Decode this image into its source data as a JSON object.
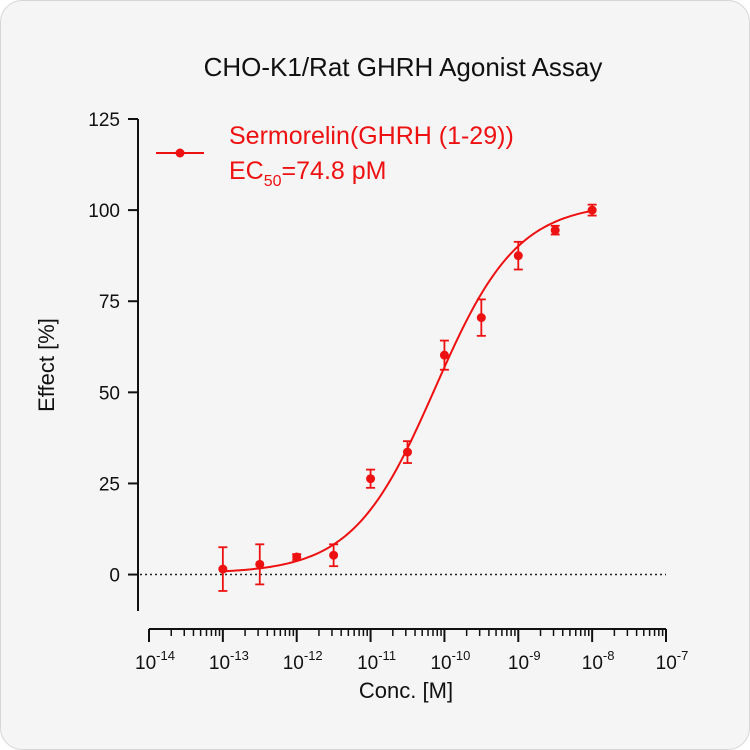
{
  "chart_data": {
    "type": "scatter",
    "title": "CHO-K1/Rat GHRH Agonist Assay",
    "xlabel": "Conc. [M]",
    "ylabel": "Effect  [%]",
    "x_scale": "log",
    "xlim": [
      1e-14,
      1e-07
    ],
    "ylim": [
      -10,
      125
    ],
    "x_ticks": [
      {
        "base": "10",
        "exp": "-14"
      },
      {
        "base": "10",
        "exp": "-13"
      },
      {
        "base": "10",
        "exp": "-12"
      },
      {
        "base": "10",
        "exp": "-11"
      },
      {
        "base": "10",
        "exp": "-10"
      },
      {
        "base": "10",
        "exp": "-9"
      },
      {
        "base": "10",
        "exp": "-8"
      },
      {
        "base": "10",
        "exp": "-7"
      }
    ],
    "y_ticks": [
      "0",
      "25",
      "50",
      "75",
      "100",
      "125"
    ],
    "y_tick_values": [
      0,
      25,
      50,
      75,
      100,
      125
    ],
    "reference_line": {
      "y": 0,
      "style": "dotted"
    },
    "grid": false,
    "legend_position": "top-left",
    "series": [
      {
        "name": "Sermorelin(GHRH (1-29))",
        "ec50_label_prefix": "EC",
        "ec50_label_sub": "50",
        "ec50_label_value": "=74.8 pM",
        "ec50_M": 7.48e-11,
        "color": "#ee1111",
        "x": [
          1e-13,
          3.16e-13,
          1e-12,
          3.16e-12,
          1e-11,
          3.16e-11,
          1e-10,
          3.16e-10,
          1e-09,
          3.16e-09,
          1e-08
        ],
        "y": [
          1.5,
          2.8,
          4.8,
          5.3,
          26.3,
          33.6,
          60.2,
          70.5,
          87.5,
          94.5,
          100.0
        ],
        "err": [
          6.0,
          5.5,
          0.8,
          3.0,
          2.5,
          3.0,
          4.0,
          5.0,
          3.8,
          1.2,
          1.5
        ]
      }
    ]
  }
}
